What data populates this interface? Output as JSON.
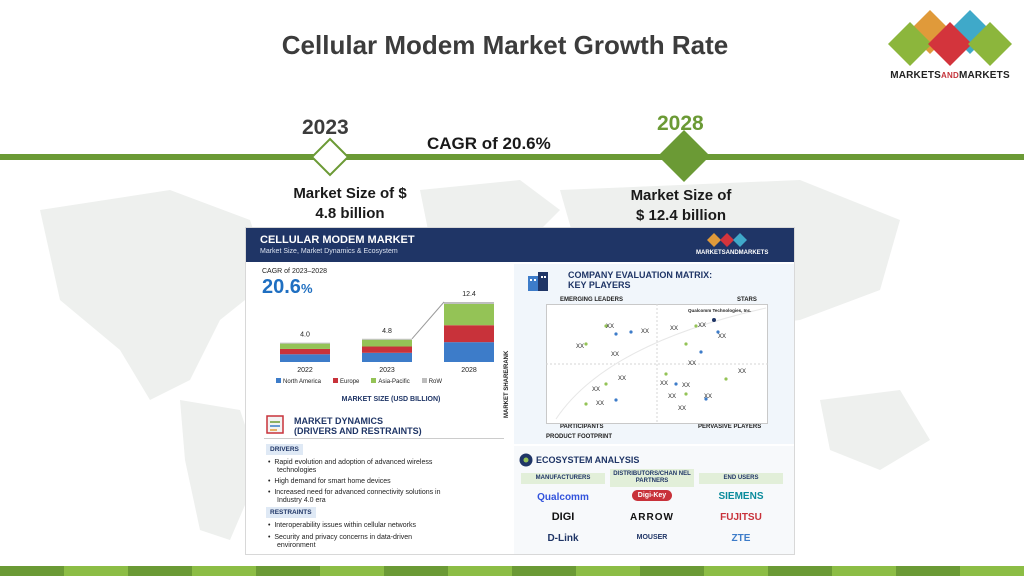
{
  "slide": {
    "title": "Cellular Modem Market Growth Rate",
    "logo_text_1": "MARKETS",
    "logo_text_and": "AND",
    "logo_text_2": "MARKETS"
  },
  "timeline": {
    "start_year": "2023",
    "end_year": "2028",
    "cagr_label": "CAGR of 20.6%",
    "start_size_line1": "Market Size of $",
    "start_size_line2": "4.8 billion",
    "end_size_line1": "Market Size of",
    "end_size_line2": "$ 12.4 billion"
  },
  "colors": {
    "accent_green": "#6b9a35",
    "year_2023": "#3c3c3c",
    "year_2028": "#6b9a35",
    "navy": "#1f3566",
    "north_america": "#3d7cc9",
    "europe": "#c8323a",
    "asia_pacific": "#94c356",
    "row": "#bdbdbd"
  },
  "infographic": {
    "title": "CELLULAR MODEM MARKET",
    "subtitle": "Market Size, Market Dynamics & Ecosystem",
    "cagr_range_label": "CAGR of 2023–2028",
    "cagr_value": "20.6",
    "cagr_unit": "%",
    "market_size_caption": "MARKET SIZE (USD BILLION)",
    "dynamics_title_1": "MARKET DYNAMICS",
    "dynamics_title_2": "(DRIVERS AND RESTRAINTS)",
    "drivers_label": "DRIVERS",
    "drivers": [
      "Rapid evolution and adoption of advanced wireless",
      "technologies",
      "High demand for smart home devices",
      "Increased need for advanced connectivity solutions in",
      "Industry 4.0 era"
    ],
    "restraints_label": "RESTRAINTS",
    "restraints": [
      "Interoperability issues within cellular networks",
      "Security and privacy concerns in data-driven",
      "environment"
    ],
    "matrix_title_1": "COMPANY EVALUATION MATRIX:",
    "matrix_title_2": "KEY PLAYERS",
    "emerging_leaders": "EMERGING LEADERS",
    "stars": "STARS",
    "participants": "PARTICIPANTS",
    "pervasive_players": "PERVASIVE PLAYERS",
    "product_footprint": "PRODUCT FOOTPRINT",
    "market_share_rank": "MARKET SHARE/RANK",
    "qualcomm_label": "Qualcomm Technologies, Inc.",
    "xx": "XX",
    "ecosystem_title": "ECOSYSTEM ANALYSIS",
    "eco_headers": [
      "MANUFACTURERS",
      "DISTRIBUTORS/CHAN NEL PARTNERS",
      "END USERS"
    ],
    "eco_rows": [
      [
        "Qualcomm",
        "Digi-Key",
        "SIEMENS"
      ],
      [
        "DIGI",
        "ARROW",
        "FUJITSU"
      ],
      [
        "D-Link",
        "MOUSER",
        "ZTE"
      ]
    ]
  },
  "chart_data": {
    "type": "bar",
    "stacked": true,
    "categories": [
      "2022",
      "2023",
      "2028"
    ],
    "series": [
      {
        "name": "North America",
        "values": [
          1.6,
          1.9,
          4.1
        ]
      },
      {
        "name": "Europe",
        "values": [
          1.1,
          1.3,
          3.5
        ]
      },
      {
        "name": "Asia-Pacific",
        "values": [
          1.1,
          1.4,
          4.4
        ]
      },
      {
        "name": "RoW",
        "values": [
          0.2,
          0.2,
          0.4
        ]
      }
    ],
    "totals": [
      "4.0",
      "4.8",
      "12.4"
    ],
    "xlabel": "MARKET SIZE (USD BILLION)",
    "ylabel": "",
    "ylim": [
      0,
      12.4
    ],
    "legend_position": "bottom",
    "grid": false
  }
}
